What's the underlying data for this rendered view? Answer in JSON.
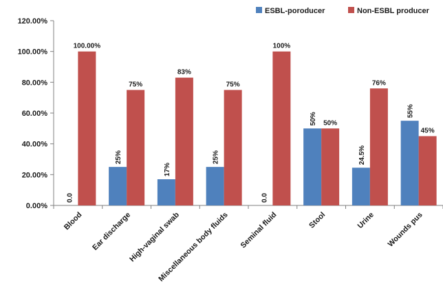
{
  "chart_data": {
    "type": "bar",
    "categories": [
      "Blood",
      "Ear discharge",
      "High-vaginal swab",
      "Miscellaneous body fluids",
      "Seminal fluid",
      "Stool",
      "Urine",
      "Wounds pus"
    ],
    "series": [
      {
        "name": "ESBL-poroducer",
        "color": "#4f81bd",
        "values": [
          0,
          25,
          17,
          25,
          0,
          50,
          24.5,
          55
        ],
        "labels": [
          "0.0",
          "25%",
          "17%",
          "25%",
          "0.0",
          "50%",
          "24.5%",
          "55%"
        ]
      },
      {
        "name": "Non-ESBL producer",
        "color": "#c0504d",
        "values": [
          100,
          75,
          83,
          75,
          100,
          50,
          76,
          45
        ],
        "labels": [
          "100.00%",
          "75%",
          "83%",
          "75%",
          "100%",
          "50%",
          "76%",
          "45%"
        ]
      }
    ],
    "yticks": [
      "0.00%",
      "20.00%",
      "40.00%",
      "60.00%",
      "80.00%",
      "100.00%",
      "120.00%"
    ],
    "ylim": [
      0,
      120
    ],
    "legend_position": "top-right",
    "grid": false
  }
}
